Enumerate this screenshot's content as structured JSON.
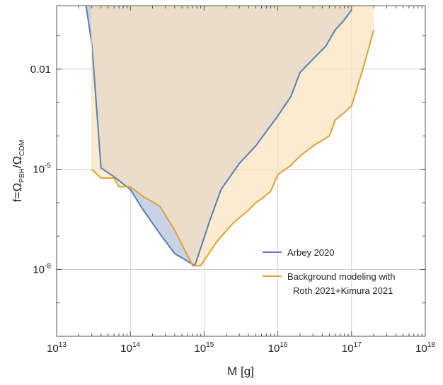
{
  "chart_data": {
    "type": "area",
    "xlabel": "M [g]",
    "ylabel": {
      "base": "f=Ω",
      "sub1": "PBH",
      "mid": "/Ω",
      "sub2": "CDM"
    },
    "x_scale": "log",
    "y_scale": "log",
    "xlim": [
      10000000000000.0,
      1e+18
    ],
    "ylim": [
      1e-10,
      0.8
    ],
    "grid": true,
    "x_ticks": [
      {
        "base": "10",
        "exp": "13"
      },
      {
        "base": "10",
        "exp": "14"
      },
      {
        "base": "10",
        "exp": "15"
      },
      {
        "base": "10",
        "exp": "16"
      },
      {
        "base": "10",
        "exp": "17"
      },
      {
        "base": "10",
        "exp": "18"
      }
    ],
    "y_ticks": [
      {
        "value": 0.01,
        "label": "0.01"
      },
      {
        "value": 1e-05,
        "base": "10",
        "exp": "-5"
      },
      {
        "value": 1e-08,
        "base": "10",
        "exp": "-8"
      }
    ],
    "legend_position": "bottom-right",
    "series": [
      {
        "name": "Arbey 2020",
        "color": "#5b7db4",
        "fill": "#b8c4dd",
        "x": [
          25000000000000.0,
          30000000000000.0,
          40000000000000.0,
          60000000000000.0,
          100000000000000.0,
          150000000000000.0,
          250000000000000.0,
          400000000000000.0,
          750000000000000.0,
          1200000000000000.0,
          1700000000000000.0,
          3000000000000000.0,
          5000000000000000.0,
          1e+16,
          1.5e+16,
          2e+16,
          3e+16,
          4.5e+16,
          6e+16,
          8e+16,
          1e+17
        ],
        "y": [
          0.8,
          0.06,
          1.1e-05,
          6e-06,
          2.5e-06,
          6e-07,
          1.2e-07,
          3e-08,
          1.3e-08,
          3e-07,
          2.5e-06,
          1.5e-05,
          5e-05,
          0.0004,
          0.0015,
          0.008,
          0.02,
          0.05,
          0.15,
          0.3,
          0.6
        ]
      },
      {
        "name": "Background modeling with Roth 2021+Kimura 2021",
        "color": "#e2a12e",
        "fill": "#f8e2bd",
        "x": [
          30000000000000.0,
          40000000000000.0,
          60000000000000.0,
          70000000000000.0,
          100000000000000.0,
          150000000000000.0,
          250000000000000.0,
          400000000000000.0,
          700000000000000.0,
          900000000000000.0,
          1500000000000000.0,
          2500000000000000.0,
          4000000000000000.0,
          5000000000000000.0,
          6000000000000000.0,
          8000000000000000.0,
          1e+16,
          1.5e+16,
          2e+16,
          3e+16,
          5e+16,
          6e+16,
          8e+16,
          1e+17,
          1.5e+17,
          2e+17
        ],
        "y": [
          1e-05,
          5.5e-06,
          5.5e-06,
          3e-06,
          3e-06,
          1.5e-06,
          8e-07,
          1.5e-07,
          1.3e-08,
          1.3e-08,
          7e-08,
          2.5e-07,
          6e-07,
          1e-06,
          1.3e-06,
          2.2e-06,
          7e-06,
          1.3e-05,
          2.5e-05,
          5e-05,
          0.0001,
          0.0003,
          0.0005,
          0.0008,
          0.015,
          0.15
        ]
      }
    ],
    "legend_labels": [
      {
        "lines": [
          "Arbey 2020"
        ]
      },
      {
        "lines": [
          "Background modeling with",
          "Roth 2021+Kimura 2021"
        ]
      }
    ]
  }
}
